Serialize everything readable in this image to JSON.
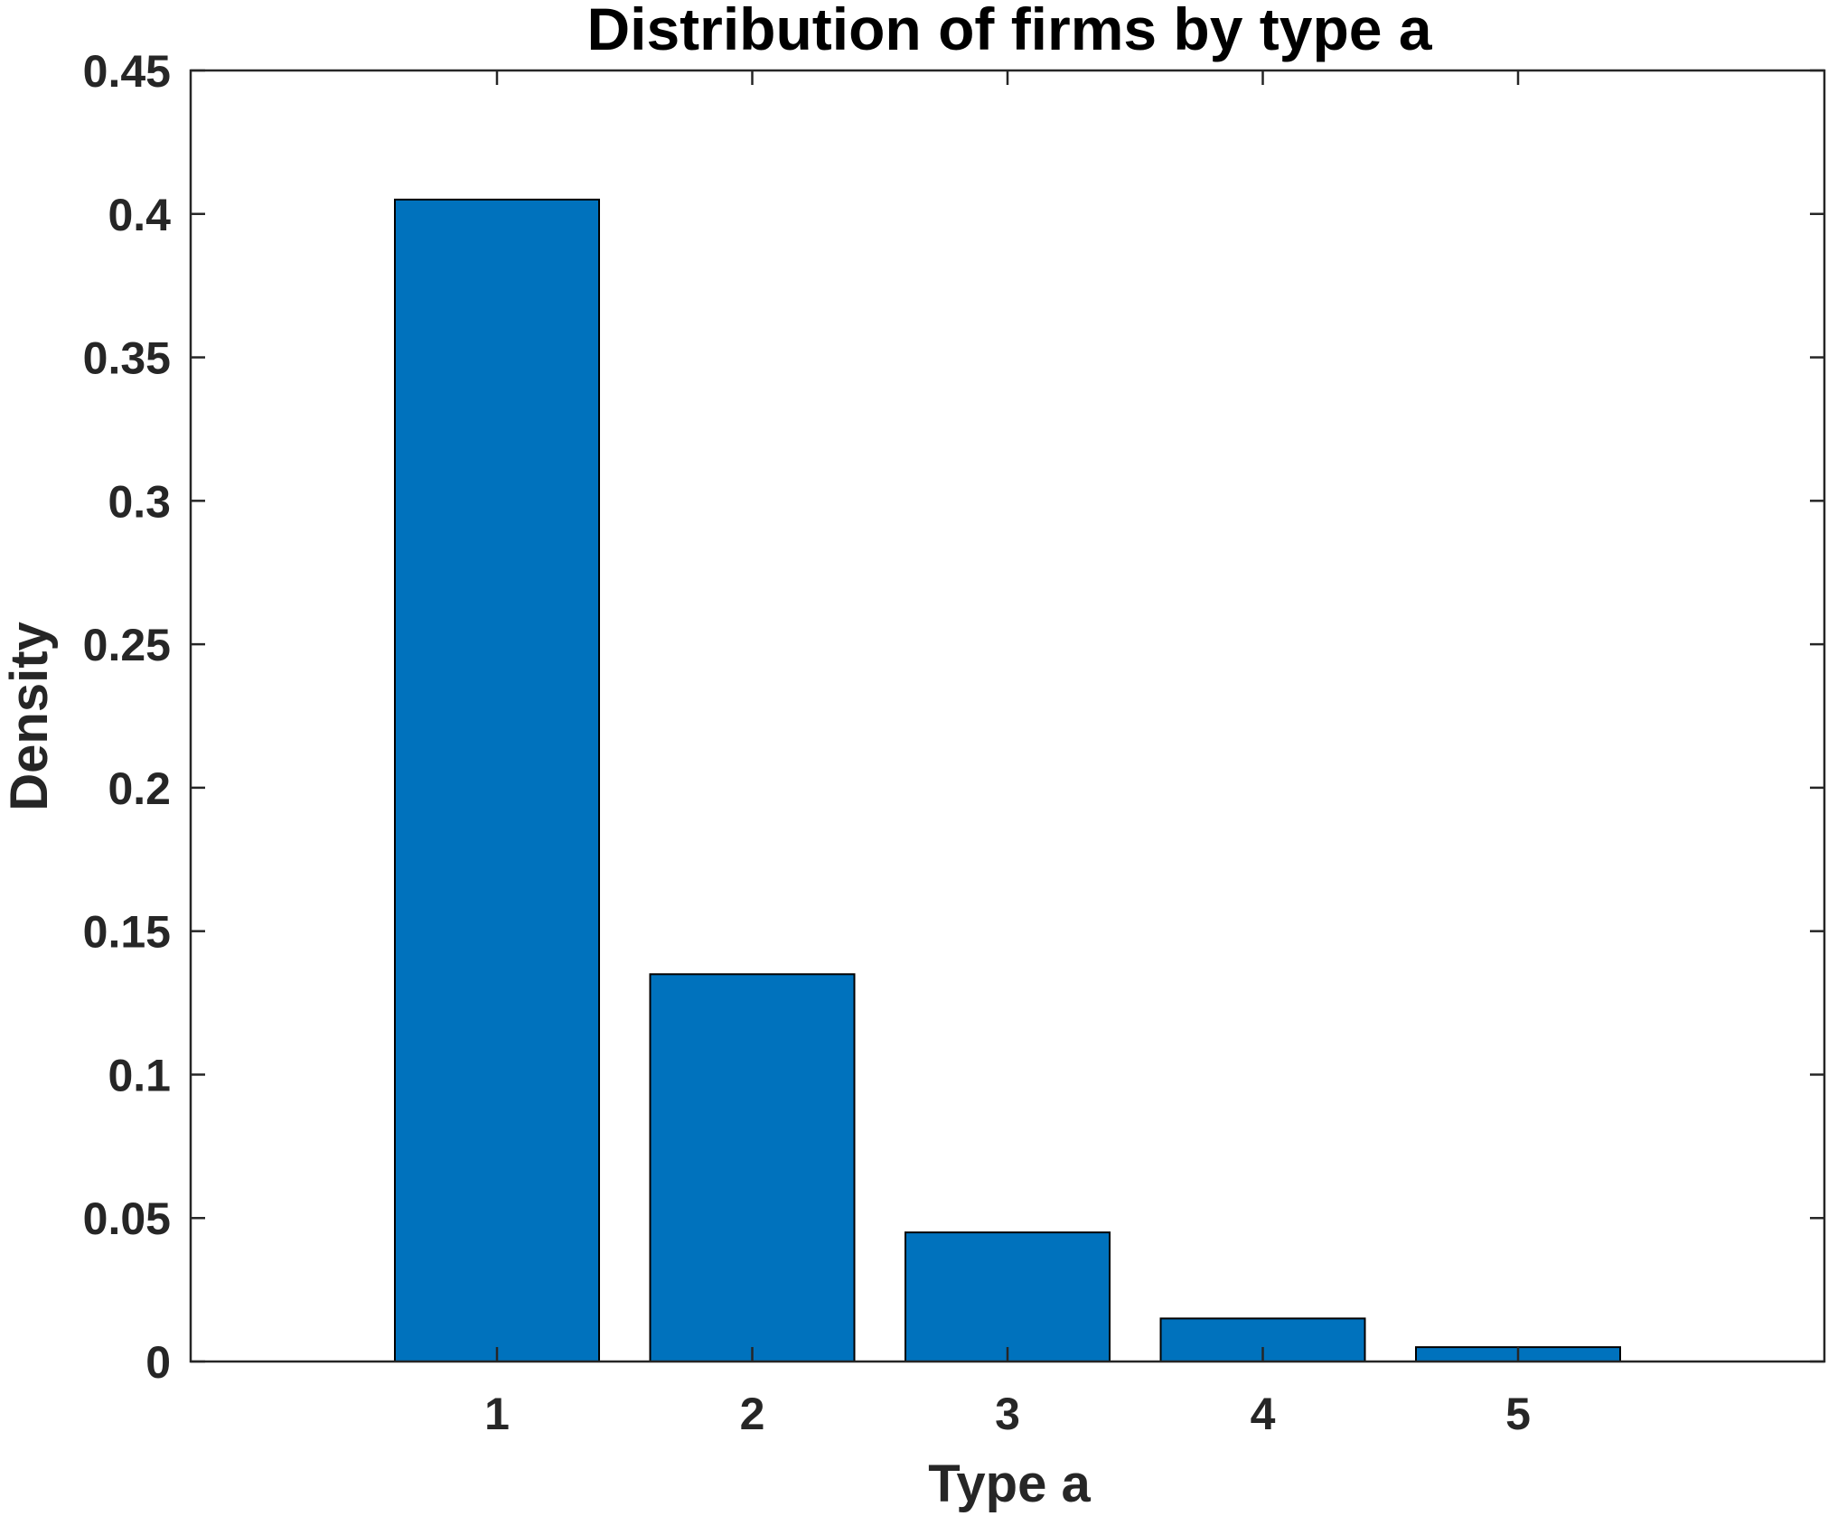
{
  "chart_data": {
    "type": "bar",
    "title": "Distribution of firms by type a",
    "xlabel": "Type a",
    "ylabel": "Density",
    "categories": [
      "1",
      "2",
      "3",
      "4",
      "5"
    ],
    "values": [
      0.405,
      0.135,
      0.045,
      0.015,
      0.005
    ],
    "xlim": [
      -0.2,
      6.2
    ],
    "ylim": [
      0,
      0.45
    ],
    "yticks": [
      "0",
      "0.05",
      "0.1",
      "0.15",
      "0.2",
      "0.25",
      "0.3",
      "0.35",
      "0.4",
      "0.45"
    ],
    "xticks": [
      "1",
      "2",
      "3",
      "4",
      "5"
    ],
    "bar_color": "#0072BD",
    "grid": false,
    "legend": "none"
  }
}
